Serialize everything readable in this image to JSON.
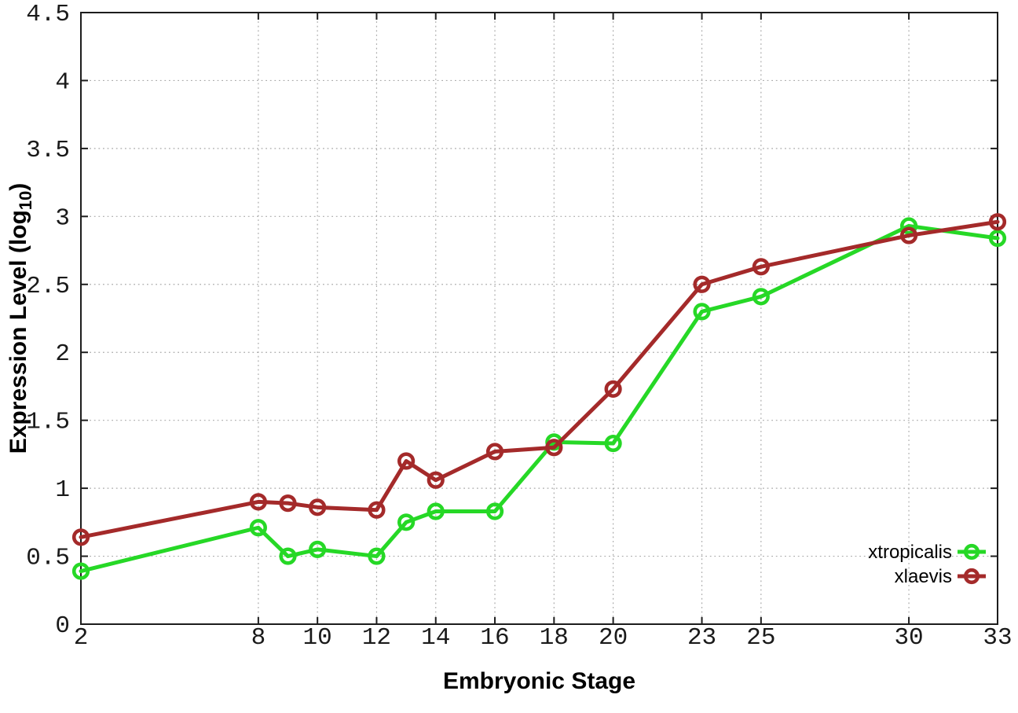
{
  "chart_data": {
    "type": "line",
    "title": "",
    "xlabel": "Embryonic Stage",
    "ylabel": "Expression Level (log10)",
    "ylabel_parts": {
      "prefix": "Expression Level (log",
      "sub": "10",
      "suffix": ")"
    },
    "x": [
      2,
      8,
      9,
      10,
      12,
      13,
      14,
      16,
      18,
      20,
      23,
      25,
      30,
      33
    ],
    "series": [
      {
        "name": "xtropicalis",
        "color": "#26d826",
        "values": [
          0.39,
          0.71,
          0.5,
          0.55,
          0.5,
          0.75,
          0.83,
          0.83,
          1.34,
          1.33,
          2.3,
          2.41,
          2.93,
          2.84
        ]
      },
      {
        "name": "xlaevis",
        "color": "#a42a2a",
        "values": [
          0.64,
          0.9,
          0.89,
          0.86,
          0.84,
          1.2,
          1.06,
          1.27,
          1.3,
          1.73,
          2.5,
          2.63,
          2.86,
          2.96
        ]
      }
    ],
    "xlim": [
      2,
      33
    ],
    "ylim": [
      0,
      4.5
    ],
    "xticks": [
      2,
      8,
      10,
      12,
      14,
      16,
      18,
      20,
      23,
      25,
      30,
      33
    ],
    "yticks": [
      0,
      0.5,
      1,
      1.5,
      2,
      2.5,
      3,
      3.5,
      4,
      4.5
    ],
    "grid": true,
    "grid_style": "dotted",
    "ticks_mirrored": true,
    "marker": "open-circle",
    "legend_position": "bottom-right",
    "legend_entries": [
      "xtropicalis",
      "xlaevis"
    ],
    "colors": {
      "axis": "#1d1d1d",
      "grid": "#aaaaaa",
      "text": "#1a1a1a"
    }
  }
}
